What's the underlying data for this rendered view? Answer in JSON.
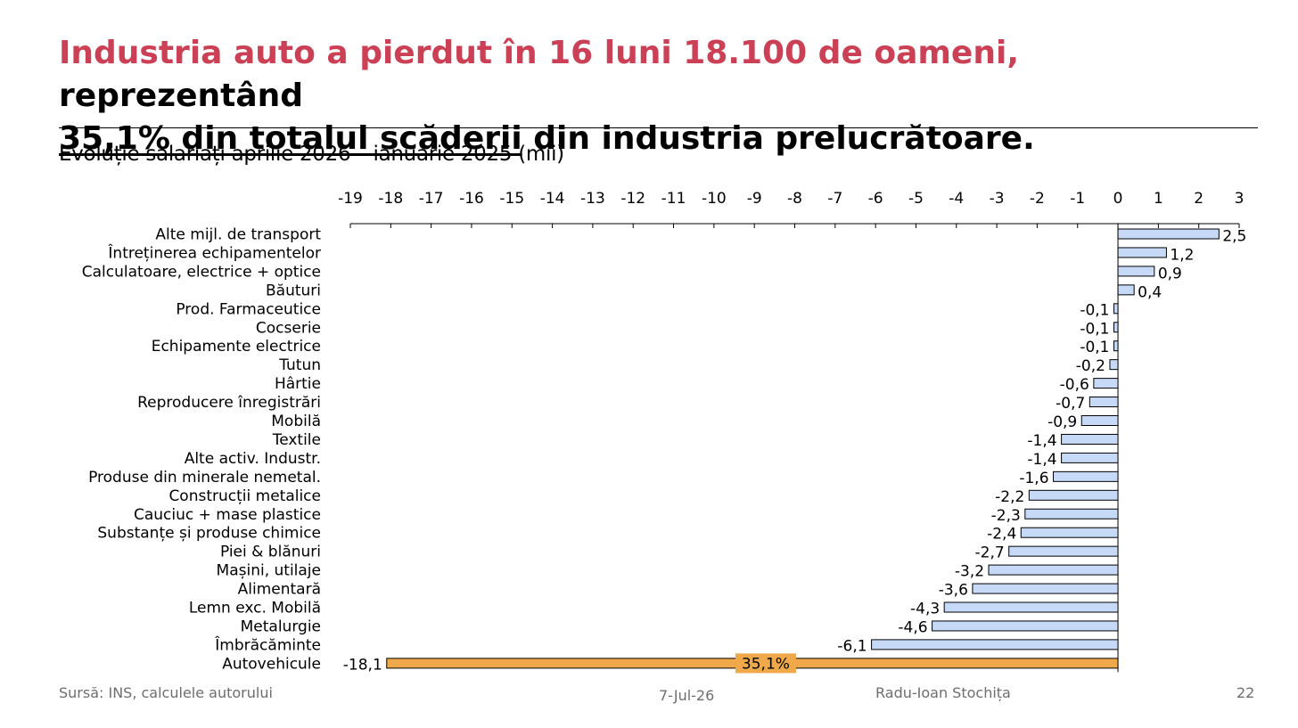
{
  "slide": {
    "title_red": "Industria auto a pierdut în 16 luni 18.100 de oameni,",
    "title_rest": " reprezentând",
    "title_underlined": "35,1% din totalul scăderii",
    "title_tail": " din industria prelucrătoare.",
    "subtitle": "Evoluție salariați aprilie 2026 – ianuarie 2025 (mii)"
  },
  "footer": {
    "source": "Sursă: INS, calculele autorului",
    "date": "7-Jul-26",
    "author": "Radu-Ioan Stochița",
    "page": "22"
  },
  "chart_data": {
    "type": "bar",
    "orientation": "horizontal",
    "title": "Evoluție salariați aprilie 2026 – ianuarie 2025 (mii)",
    "xlim": [
      -19,
      3
    ],
    "x_ticks": [
      "-19",
      "-18",
      "-17",
      "-16",
      "-15",
      "-14",
      "-13",
      "-12",
      "-11",
      "-10",
      "-9",
      "-8",
      "-7",
      "-6",
      "-5",
      "-4",
      "-3",
      "-2",
      "-1",
      "0",
      "1",
      "2",
      "3"
    ],
    "x_axis_position": "top",
    "grid": false,
    "legend": "none",
    "colors": {
      "default_bar": "#c6d9f7",
      "highlight_bar": "#efa94a",
      "bar_outline": "#000000"
    },
    "categories": [
      "Alte mijl. de transport",
      "Întreținerea echipamentelor",
      "Calculatoare, electrice + optice",
      "Băuturi",
      "Prod. Farmaceutice",
      "Cocserie",
      "Echipamente electrice",
      "Tutun",
      "Hârtie",
      "Reproducere înregistrări",
      "Mobilă",
      "Textile",
      "Alte activ. Industr.",
      "Produse din minerale nemetal.",
      "Construcții metalice",
      "Cauciuc + mase plastice",
      "Substanțe și produse chimice",
      "Piei & blănuri",
      "Mașini, utilaje",
      "Alimentară",
      "Lemn exc. Mobilă",
      "Metalurgie",
      "Îmbrăcăminte",
      "Autovehicule"
    ],
    "values": [
      2.5,
      1.2,
      0.9,
      0.4,
      -0.1,
      -0.1,
      -0.1,
      -0.2,
      -0.6,
      -0.7,
      -0.9,
      -1.4,
      -1.4,
      -1.6,
      -2.2,
      -2.3,
      -2.4,
      -2.7,
      -3.2,
      -3.6,
      -4.3,
      -4.6,
      -6.1,
      -18.1
    ],
    "data_labels": [
      "2,5",
      "1,2",
      "0,9",
      "0,4",
      "-0,1",
      "-0,1",
      "-0,1",
      "-0,2",
      "-0,6",
      "-0,7",
      "-0,9",
      "-1,4",
      "-1,4",
      "-1,6",
      "-2,2",
      "-2,3",
      "-2,4",
      "-2,7",
      "-3,2",
      "-3,6",
      "-4,3",
      "-4,6",
      "-6,1",
      "-18,1"
    ],
    "highlight": {
      "category": "Autovehicule",
      "annotation": "35,1%"
    }
  }
}
